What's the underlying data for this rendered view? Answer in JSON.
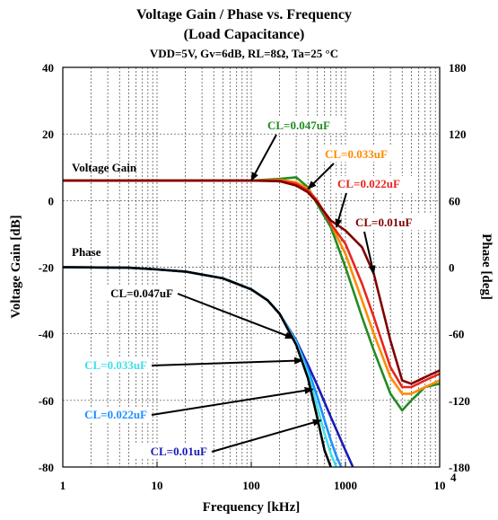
{
  "chart_data": {
    "type": "line",
    "title": "Voltage Gain / Phase vs. Frequency",
    "subtitle": "(Load Capacitance)",
    "conditions": "VDD=5V, Gv=6dB, RL=8Ω, Ta=25 °C",
    "xlabel": "Frequency [kHz]",
    "ylabel_left": "Voltage Gain [dB]",
    "ylabel_right": "Phase [deg]",
    "xscale": "log",
    "xlim": [
      1,
      10000
    ],
    "xticks": [
      "1",
      "10",
      "100",
      "1000",
      "10"
    ],
    "xtick_last_exponent": "4",
    "ylim_left": [
      -80,
      40
    ],
    "yticks_left": [
      "40",
      "20",
      "0",
      "-20",
      "-40",
      "-60",
      "-80"
    ],
    "ylim_right": [
      -180,
      180
    ],
    "yticks_right": [
      "180",
      "120",
      "60",
      "0",
      "-60",
      "-120",
      "-180"
    ],
    "grid": true,
    "group_labels": {
      "gain": "Voltage Gain",
      "phase": "Phase"
    },
    "gain_series": [
      {
        "name": "CL=0.047uF",
        "color": "#228B22",
        "x": [
          1,
          100,
          200,
          300,
          400,
          500,
          700,
          1000,
          1500,
          2000,
          3000,
          4000,
          5000,
          7000,
          10000
        ],
        "y": [
          6,
          6,
          6.5,
          7,
          4,
          -1,
          -8,
          -20,
          -35,
          -45,
          -58,
          -63,
          -60,
          -56,
          -55
        ]
      },
      {
        "name": "CL=0.033uF",
        "color": "#FF8C00",
        "x": [
          1,
          100,
          200,
          300,
          400,
          500,
          700,
          1000,
          1500,
          2000,
          3000,
          4000,
          5000,
          7000,
          10000
        ],
        "y": [
          6,
          6,
          6.2,
          5.5,
          3.5,
          0,
          -7,
          -16,
          -30,
          -40,
          -53,
          -58,
          -58,
          -56,
          -54
        ]
      },
      {
        "name": "CL=0.022uF",
        "color": "#E8251E",
        "x": [
          1,
          100,
          200,
          300,
          400,
          500,
          700,
          1000,
          1500,
          2000,
          3000,
          4000,
          5000,
          7000,
          10000
        ],
        "y": [
          6,
          6,
          6,
          5,
          3,
          0,
          -7,
          -13,
          -25,
          -35,
          -50,
          -56,
          -56,
          -54,
          -52
        ]
      },
      {
        "name": "CL=0.01uF",
        "color": "#800000",
        "x": [
          1,
          100,
          200,
          300,
          400,
          500,
          700,
          1000,
          1500,
          2000,
          3000,
          4000,
          5000,
          7000,
          10000
        ],
        "y": [
          6,
          6,
          5.8,
          4.5,
          2.5,
          -0.5,
          -6,
          -9,
          -14,
          -22,
          -42,
          -54,
          -55,
          -53,
          -51
        ]
      }
    ],
    "phase_series": [
      {
        "name": "CL=0.047uF",
        "color": "#000000",
        "x": [
          1,
          5,
          10,
          20,
          50,
          100,
          150,
          200,
          300,
          400,
          500,
          600,
          700
        ],
        "y": [
          0,
          -0.5,
          -2,
          -4,
          -10,
          -20,
          -30,
          -42,
          -70,
          -100,
          -135,
          -165,
          -180
        ]
      },
      {
        "name": "CL=0.033uF",
        "color": "#40E0E8",
        "x": [
          1,
          5,
          10,
          20,
          50,
          100,
          150,
          200,
          300,
          400,
          500,
          600,
          700,
          800
        ],
        "y": [
          0,
          -0.5,
          -2,
          -4,
          -10,
          -20,
          -30,
          -42,
          -68,
          -96,
          -125,
          -150,
          -168,
          -180
        ]
      },
      {
        "name": "CL=0.022uF",
        "color": "#1E90FF",
        "x": [
          1,
          5,
          10,
          20,
          50,
          100,
          150,
          200,
          300,
          400,
          500,
          600,
          700,
          800,
          900
        ],
        "y": [
          0,
          -0.5,
          -2,
          -4,
          -10,
          -20,
          -30,
          -42,
          -67,
          -92,
          -116,
          -138,
          -156,
          -170,
          -180
        ]
      },
      {
        "name": "CL=0.01uF",
        "color": "#1A1AB8",
        "x": [
          1,
          5,
          10,
          20,
          50,
          100,
          150,
          200,
          300,
          400,
          500,
          700,
          1000,
          1200
        ],
        "y": [
          0,
          -0.5,
          -2,
          -4,
          -10,
          -20,
          -30,
          -42,
          -66,
          -88,
          -106,
          -135,
          -165,
          -180
        ]
      }
    ],
    "annotations": [
      {
        "text": "CL=0.047uF",
        "group": "gain",
        "color": "#228B22",
        "target_x": 100,
        "target_y": 6
      },
      {
        "text": "CL=0.033uF",
        "group": "gain",
        "color": "#FF8C00",
        "target_x": 400,
        "target_y": 3.5
      },
      {
        "text": "CL=0.022uF",
        "group": "gain",
        "color": "#E8251E",
        "target_x": 800,
        "target_y": -8
      },
      {
        "text": "CL=0.01uF",
        "group": "gain",
        "color": "#800000",
        "target_x": 2000,
        "target_y": -22
      },
      {
        "text": "CL=0.047uF",
        "group": "phase",
        "color": "#000000",
        "target_x": 280,
        "target_y": -64
      },
      {
        "text": "CL=0.033uF",
        "group": "phase",
        "color": "#40E0E8",
        "target_x": 350,
        "target_y": -84
      },
      {
        "text": "CL=0.022uF",
        "group": "phase",
        "color": "#1E90FF",
        "target_x": 450,
        "target_y": -110
      },
      {
        "text": "CL=0.01uF",
        "group": "phase",
        "color": "#1A1AB8",
        "target_x": 550,
        "target_y": -138
      }
    ]
  }
}
